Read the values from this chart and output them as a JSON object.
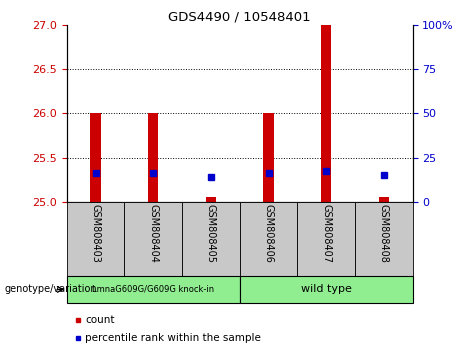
{
  "title": "GDS4490 / 10548401",
  "samples": [
    "GSM808403",
    "GSM808404",
    "GSM808405",
    "GSM808406",
    "GSM808407",
    "GSM808408"
  ],
  "red_bar_tops": [
    26.0,
    26.0,
    25.05,
    26.0,
    27.0,
    25.05
  ],
  "red_bar_bottom": 25.0,
  "blue_dot_y": [
    25.32,
    25.32,
    25.28,
    25.32,
    25.35,
    25.3
  ],
  "ylim_left": [
    25.0,
    27.0
  ],
  "ylim_right": [
    0,
    100
  ],
  "yticks_left": [
    25.0,
    25.5,
    26.0,
    26.5,
    27.0
  ],
  "yticks_right": [
    0,
    25,
    50,
    75,
    100
  ],
  "group1_label": "LmnaG609G/G609G knock-in",
  "group2_label": "wild type",
  "group_color": "#90EE90",
  "group1_samples": [
    0,
    1,
    2
  ],
  "group2_samples": [
    3,
    4,
    5
  ],
  "bar_color": "#CC0000",
  "dot_color": "#0000CC",
  "legend_count_label": "count",
  "legend_percentile_label": "percentile rank within the sample",
  "genotype_label": "genotype/variation",
  "bg_color": "#ffffff",
  "plot_bg_color": "#ffffff",
  "tick_color_left": "#CC0000",
  "tick_color_right": "#0000CC",
  "grid_color": "#000000",
  "sample_area_color": "#C8C8C8",
  "bar_width": 0.18
}
